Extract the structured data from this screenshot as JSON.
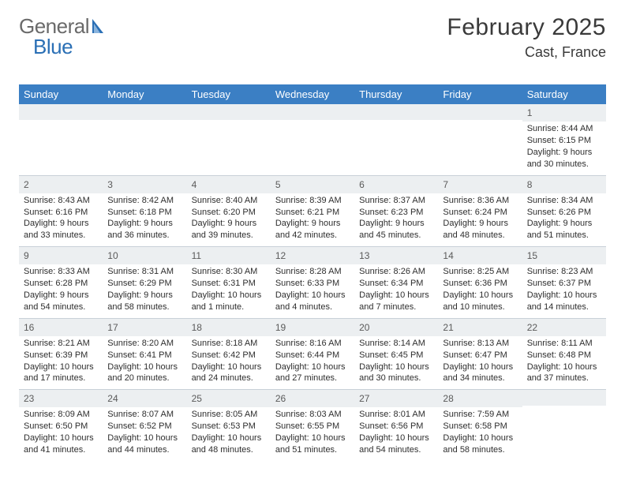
{
  "brand": {
    "name1": "General",
    "name2": "Blue"
  },
  "title": "February 2025",
  "location": "Cast, France",
  "colors": {
    "header_bg": "#3b7fc4",
    "header_text": "#ffffff",
    "daynum_bg": "#eceff1",
    "border": "#c8d0d8",
    "logo_gray": "#6a6a6a",
    "logo_blue": "#2a6fb5"
  },
  "weekdays": [
    "Sunday",
    "Monday",
    "Tuesday",
    "Wednesday",
    "Thursday",
    "Friday",
    "Saturday"
  ],
  "weeks": [
    [
      {
        "n": "",
        "lines": []
      },
      {
        "n": "",
        "lines": []
      },
      {
        "n": "",
        "lines": []
      },
      {
        "n": "",
        "lines": []
      },
      {
        "n": "",
        "lines": []
      },
      {
        "n": "",
        "lines": []
      },
      {
        "n": "1",
        "lines": [
          "Sunrise: 8:44 AM",
          "Sunset: 6:15 PM",
          "Daylight: 9 hours and 30 minutes."
        ]
      }
    ],
    [
      {
        "n": "2",
        "lines": [
          "Sunrise: 8:43 AM",
          "Sunset: 6:16 PM",
          "Daylight: 9 hours and 33 minutes."
        ]
      },
      {
        "n": "3",
        "lines": [
          "Sunrise: 8:42 AM",
          "Sunset: 6:18 PM",
          "Daylight: 9 hours and 36 minutes."
        ]
      },
      {
        "n": "4",
        "lines": [
          "Sunrise: 8:40 AM",
          "Sunset: 6:20 PM",
          "Daylight: 9 hours and 39 minutes."
        ]
      },
      {
        "n": "5",
        "lines": [
          "Sunrise: 8:39 AM",
          "Sunset: 6:21 PM",
          "Daylight: 9 hours and 42 minutes."
        ]
      },
      {
        "n": "6",
        "lines": [
          "Sunrise: 8:37 AM",
          "Sunset: 6:23 PM",
          "Daylight: 9 hours and 45 minutes."
        ]
      },
      {
        "n": "7",
        "lines": [
          "Sunrise: 8:36 AM",
          "Sunset: 6:24 PM",
          "Daylight: 9 hours and 48 minutes."
        ]
      },
      {
        "n": "8",
        "lines": [
          "Sunrise: 8:34 AM",
          "Sunset: 6:26 PM",
          "Daylight: 9 hours and 51 minutes."
        ]
      }
    ],
    [
      {
        "n": "9",
        "lines": [
          "Sunrise: 8:33 AM",
          "Sunset: 6:28 PM",
          "Daylight: 9 hours and 54 minutes."
        ]
      },
      {
        "n": "10",
        "lines": [
          "Sunrise: 8:31 AM",
          "Sunset: 6:29 PM",
          "Daylight: 9 hours and 58 minutes."
        ]
      },
      {
        "n": "11",
        "lines": [
          "Sunrise: 8:30 AM",
          "Sunset: 6:31 PM",
          "Daylight: 10 hours and 1 minute."
        ]
      },
      {
        "n": "12",
        "lines": [
          "Sunrise: 8:28 AM",
          "Sunset: 6:33 PM",
          "Daylight: 10 hours and 4 minutes."
        ]
      },
      {
        "n": "13",
        "lines": [
          "Sunrise: 8:26 AM",
          "Sunset: 6:34 PM",
          "Daylight: 10 hours and 7 minutes."
        ]
      },
      {
        "n": "14",
        "lines": [
          "Sunrise: 8:25 AM",
          "Sunset: 6:36 PM",
          "Daylight: 10 hours and 10 minutes."
        ]
      },
      {
        "n": "15",
        "lines": [
          "Sunrise: 8:23 AM",
          "Sunset: 6:37 PM",
          "Daylight: 10 hours and 14 minutes."
        ]
      }
    ],
    [
      {
        "n": "16",
        "lines": [
          "Sunrise: 8:21 AM",
          "Sunset: 6:39 PM",
          "Daylight: 10 hours and 17 minutes."
        ]
      },
      {
        "n": "17",
        "lines": [
          "Sunrise: 8:20 AM",
          "Sunset: 6:41 PM",
          "Daylight: 10 hours and 20 minutes."
        ]
      },
      {
        "n": "18",
        "lines": [
          "Sunrise: 8:18 AM",
          "Sunset: 6:42 PM",
          "Daylight: 10 hours and 24 minutes."
        ]
      },
      {
        "n": "19",
        "lines": [
          "Sunrise: 8:16 AM",
          "Sunset: 6:44 PM",
          "Daylight: 10 hours and 27 minutes."
        ]
      },
      {
        "n": "20",
        "lines": [
          "Sunrise: 8:14 AM",
          "Sunset: 6:45 PM",
          "Daylight: 10 hours and 30 minutes."
        ]
      },
      {
        "n": "21",
        "lines": [
          "Sunrise: 8:13 AM",
          "Sunset: 6:47 PM",
          "Daylight: 10 hours and 34 minutes."
        ]
      },
      {
        "n": "22",
        "lines": [
          "Sunrise: 8:11 AM",
          "Sunset: 6:48 PM",
          "Daylight: 10 hours and 37 minutes."
        ]
      }
    ],
    [
      {
        "n": "23",
        "lines": [
          "Sunrise: 8:09 AM",
          "Sunset: 6:50 PM",
          "Daylight: 10 hours and 41 minutes."
        ]
      },
      {
        "n": "24",
        "lines": [
          "Sunrise: 8:07 AM",
          "Sunset: 6:52 PM",
          "Daylight: 10 hours and 44 minutes."
        ]
      },
      {
        "n": "25",
        "lines": [
          "Sunrise: 8:05 AM",
          "Sunset: 6:53 PM",
          "Daylight: 10 hours and 48 minutes."
        ]
      },
      {
        "n": "26",
        "lines": [
          "Sunrise: 8:03 AM",
          "Sunset: 6:55 PM",
          "Daylight: 10 hours and 51 minutes."
        ]
      },
      {
        "n": "27",
        "lines": [
          "Sunrise: 8:01 AM",
          "Sunset: 6:56 PM",
          "Daylight: 10 hours and 54 minutes."
        ]
      },
      {
        "n": "28",
        "lines": [
          "Sunrise: 7:59 AM",
          "Sunset: 6:58 PM",
          "Daylight: 10 hours and 58 minutes."
        ]
      },
      {
        "n": "",
        "lines": []
      }
    ]
  ]
}
